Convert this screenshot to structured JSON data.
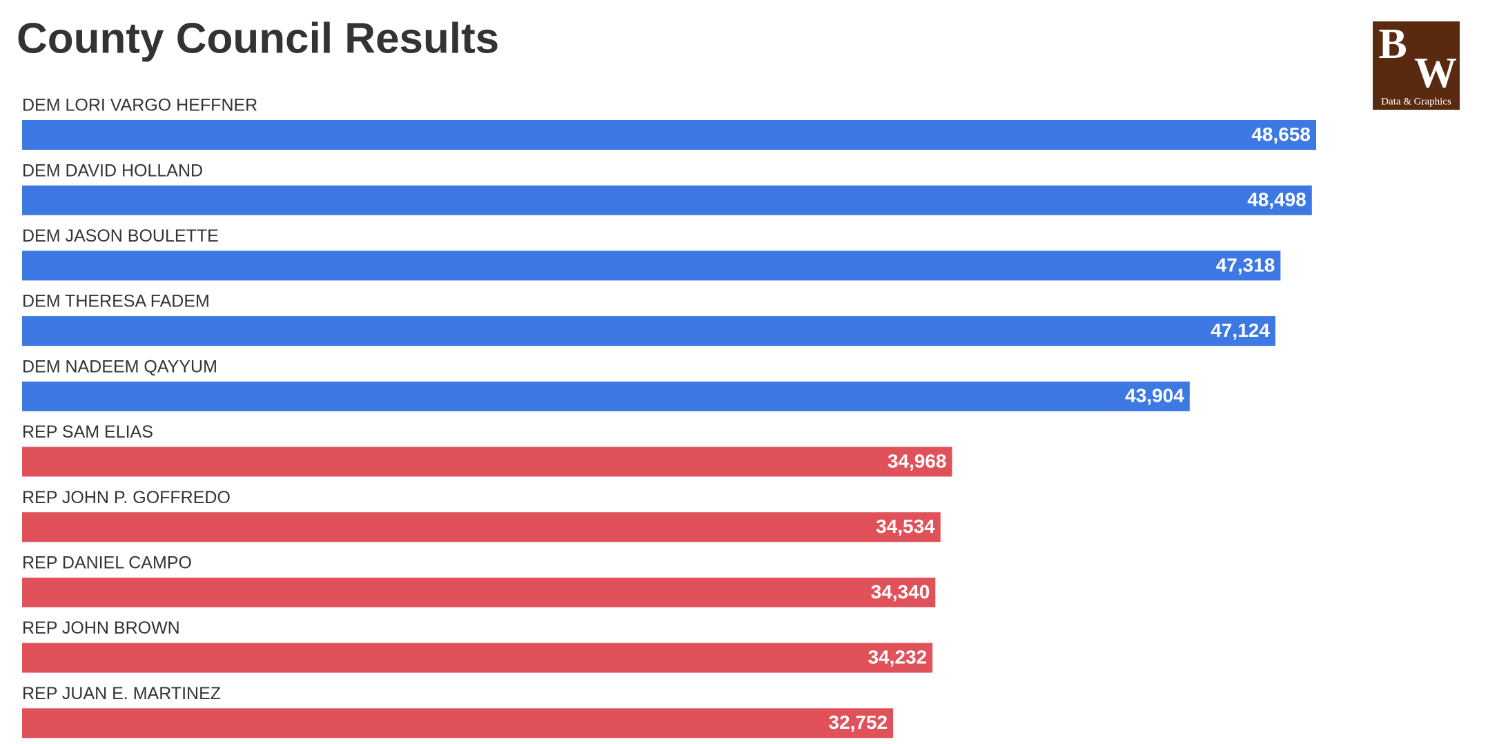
{
  "chart_data": {
    "type": "hbar",
    "title": "County Council Results",
    "categories": [
      "DEM LORI VARGO HEFFNER",
      "DEM DAVID HOLLAND",
      "DEM JASON BOULETTE",
      "DEM THERESA FADEM",
      "DEM NADEEM QAYYUM",
      "REP SAM ELIAS",
      "REP JOHN P. GOFFREDO",
      "REP DANIEL CAMPO",
      "REP JOHN BROWN",
      "REP JUAN E. MARTINEZ"
    ],
    "values": [
      48658,
      48498,
      47318,
      47124,
      43904,
      34968,
      34534,
      34340,
      34232,
      32752
    ],
    "value_labels": [
      "48,658",
      "48,498",
      "47,318",
      "47,124",
      "43,904",
      "34,968",
      "34,534",
      "34,340",
      "34,232",
      "32,752"
    ],
    "colors": [
      "#3d78e3",
      "#3d78e3",
      "#3d78e3",
      "#3d78e3",
      "#3d78e3",
      "#e0515a",
      "#e0515a",
      "#e0515a",
      "#e0515a",
      "#e0515a"
    ]
  },
  "logo": {
    "letters": [
      "B",
      "W"
    ],
    "caption": "Data & Graphics"
  }
}
